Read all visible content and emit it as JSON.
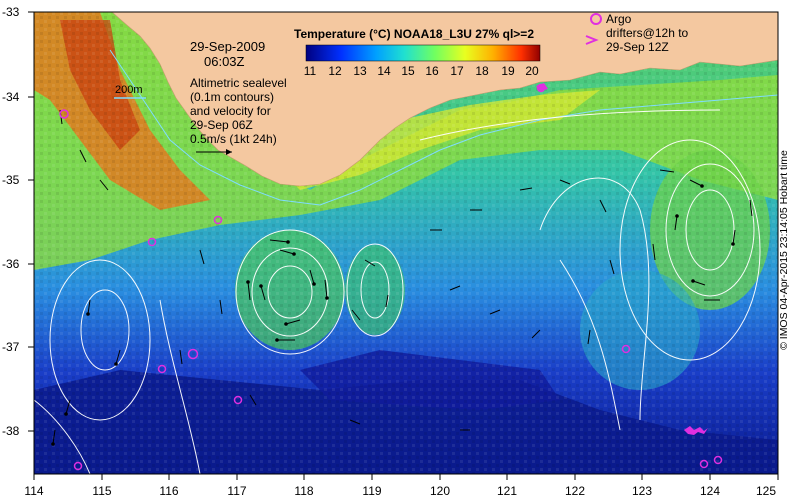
{
  "map": {
    "lat_labels": [
      "-33",
      "-34",
      "-35",
      "-36",
      "-37",
      "-38"
    ],
    "lon_labels": [
      "114",
      "115",
      "116",
      "117",
      "118",
      "119",
      "120",
      "121",
      "122",
      "123",
      "124",
      "125"
    ],
    "date": "29-Sep-2009",
    "time": "06:03Z",
    "altimetry_note": [
      "Altimetric sealevel",
      "(0.1m contours)",
      "and velocity for",
      "29-Sep 06Z",
      "0.5m/s (1kt 24h)"
    ],
    "depth_label": "200m",
    "credit": "© IMOS 04-Apr-2015 23:14:05 Hobart time"
  },
  "colorbar": {
    "title": "Temperature (°C) NOAA18_L3U 27% ql>=2",
    "ticks": [
      "11",
      "12",
      "13",
      "14",
      "15",
      "16",
      "17",
      "18",
      "19",
      "20"
    ]
  },
  "argo_legend": {
    "line1": "Argo",
    "line2": "drifters@12h to",
    "line3": "29-Sep 12Z"
  },
  "colors": {
    "land": "#f4c8a0",
    "argo": "#e02fe0",
    "contour": "#ffffff"
  }
}
